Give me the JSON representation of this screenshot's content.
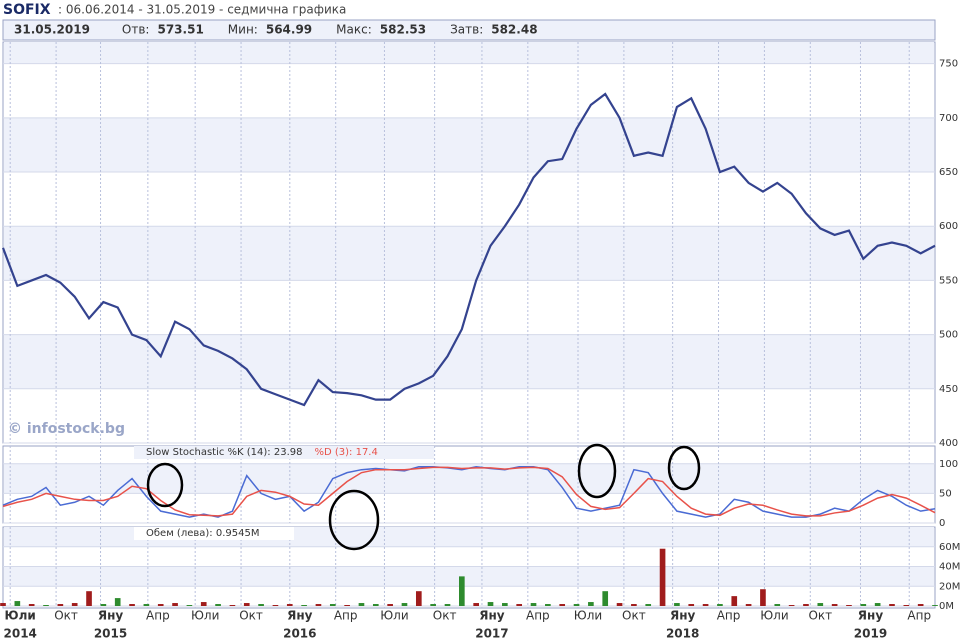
{
  "header": {
    "symbol": "SOFIX",
    "period": ": 06.06.2014 - 31.05.2019 - седмична графика",
    "quote": [
      {
        "label": "31.05.2019",
        "value": ""
      },
      {
        "label": "Отв:",
        "value": "573.51"
      },
      {
        "label": "Мин:",
        "value": "564.99"
      },
      {
        "label": "Макс:",
        "value": "582.53"
      },
      {
        "label": "Затв:",
        "value": "582.48"
      }
    ]
  },
  "chart_data": [
    {
      "type": "line",
      "annotation": "© infostock.bg",
      "color": "#34438f",
      "values": [
        580,
        545,
        550,
        555,
        548,
        535,
        515,
        530,
        525,
        500,
        495,
        480,
        512,
        505,
        490,
        485,
        478,
        468,
        450,
        445,
        440,
        435,
        458,
        447,
        446,
        444,
        440,
        440,
        450,
        455,
        462,
        480,
        505,
        550,
        582,
        600,
        620,
        645,
        660,
        662,
        690,
        712,
        722,
        700,
        665,
        668,
        665,
        710,
        718,
        690,
        650,
        655,
        640,
        632,
        640,
        630,
        612,
        598,
        592,
        596,
        570,
        582,
        585,
        582,
        575,
        582
      ],
      "ylim": [
        400,
        770
      ],
      "yticks": [
        400,
        450,
        500,
        550,
        600,
        650,
        700,
        750
      ],
      "grid": true
    },
    {
      "type": "line",
      "ylim": [
        0,
        130
      ],
      "yticks": [
        0,
        50,
        100
      ],
      "grid": true,
      "series": [
        {
          "name": "Slow Stochastic %K (14): 23.98",
          "color": "#4a6bd4",
          "values": [
            30,
            40,
            45,
            60,
            30,
            35,
            45,
            30,
            55,
            75,
            45,
            20,
            15,
            10,
            15,
            10,
            20,
            80,
            50,
            40,
            45,
            20,
            35,
            75,
            85,
            90,
            92,
            90,
            88,
            95,
            95,
            93,
            90,
            95,
            92,
            90,
            95,
            95,
            90,
            60,
            25,
            20,
            25,
            30,
            90,
            85,
            50,
            20,
            15,
            10,
            15,
            40,
            35,
            20,
            15,
            10,
            10,
            15,
            25,
            20,
            40,
            55,
            45,
            30,
            20,
            23.98
          ]
        },
        {
          "name": "%D (3): 17.4",
          "color": "#e8524a",
          "values": [
            28,
            35,
            40,
            50,
            45,
            40,
            38,
            38,
            45,
            62,
            58,
            38,
            22,
            14,
            13,
            12,
            15,
            45,
            55,
            52,
            45,
            32,
            30,
            50,
            70,
            85,
            90,
            90,
            90,
            92,
            94,
            94,
            92,
            93,
            93,
            91,
            93,
            94,
            92,
            78,
            48,
            28,
            23,
            26,
            50,
            75,
            70,
            45,
            25,
            15,
            13,
            25,
            32,
            30,
            22,
            15,
            12,
            12,
            17,
            20,
            30,
            42,
            48,
            42,
            30,
            17.4
          ]
        }
      ]
    },
    {
      "type": "bar",
      "title": "Обем (лева): 0.9545M",
      "values": [
        3,
        5,
        2,
        1,
        2,
        3,
        15,
        2,
        8,
        2,
        2,
        2,
        3,
        1,
        4,
        2,
        1,
        3,
        2,
        1,
        2,
        1,
        2,
        2,
        1,
        3,
        2,
        2,
        3,
        15,
        2,
        2,
        30,
        3,
        4,
        3,
        2,
        3,
        2,
        2,
        2,
        4,
        15,
        3,
        2,
        2,
        58,
        3,
        2,
        2,
        2,
        10,
        2,
        17,
        2,
        1,
        2,
        3,
        2,
        1,
        2,
        3,
        2,
        1,
        2,
        0.9545
      ],
      "colors": [
        "#a01c1c",
        "#2e8b2e",
        "#a01c1c",
        "#2e8b2e",
        "#a01c1c",
        "#a01c1c",
        "#a01c1c",
        "#2e8b2e",
        "#2e8b2e",
        "#a01c1c",
        "#2e8b2e",
        "#a01c1c",
        "#a01c1c",
        "#2e8b2e",
        "#a01c1c",
        "#2e8b2e",
        "#a01c1c",
        "#a01c1c",
        "#2e8b2e",
        "#a01c1c",
        "#a01c1c",
        "#2e8b2e",
        "#a01c1c",
        "#2e8b2e",
        "#a01c1c",
        "#2e8b2e",
        "#2e8b2e",
        "#a01c1c",
        "#2e8b2e",
        "#a01c1c",
        "#2e8b2e",
        "#2e8b2e",
        "#2e8b2e",
        "#a01c1c",
        "#2e8b2e",
        "#2e8b2e",
        "#a01c1c",
        "#2e8b2e",
        "#2e8b2e",
        "#a01c1c",
        "#2e8b2e",
        "#2e8b2e",
        "#2e8b2e",
        "#a01c1c",
        "#a01c1c",
        "#2e8b2e",
        "#a01c1c",
        "#2e8b2e",
        "#a01c1c",
        "#a01c1c",
        "#2e8b2e",
        "#a01c1c",
        "#a01c1c",
        "#a01c1c",
        "#2e8b2e",
        "#a01c1c",
        "#a01c1c",
        "#2e8b2e",
        "#a01c1c",
        "#a01c1c",
        "#2e8b2e",
        "#2e8b2e",
        "#a01c1c",
        "#a01c1c",
        "#a01c1c",
        "#2e8b2e"
      ],
      "ylim": [
        0,
        80
      ],
      "yticks": [
        {
          "value": 0,
          "label": "0M"
        },
        {
          "value": 20,
          "label": "20M"
        },
        {
          "value": 40,
          "label": "40M"
        },
        {
          "value": 60,
          "label": "60M"
        }
      ],
      "grid": true,
      "xlim": [
        0,
        65
      ],
      "xticks": [
        {
          "value": 1.2,
          "label": "Юли"
        },
        {
          "value": 4.4,
          "label": "Окт"
        },
        {
          "value": 7.5,
          "label": "Яну"
        },
        {
          "value": 10.8,
          "label": "Апр"
        },
        {
          "value": 14.1,
          "label": "Юли"
        },
        {
          "value": 17.3,
          "label": "Окт"
        },
        {
          "value": 20.7,
          "label": "Яну"
        },
        {
          "value": 23.9,
          "label": "Апр"
        },
        {
          "value": 27.3,
          "label": "Юли"
        },
        {
          "value": 30.8,
          "label": "Окт"
        },
        {
          "value": 34.1,
          "label": "Яну"
        },
        {
          "value": 37.3,
          "label": "Апр"
        },
        {
          "value": 40.8,
          "label": "Юли"
        },
        {
          "value": 44.0,
          "label": "Окт"
        },
        {
          "value": 47.4,
          "label": "Яну"
        },
        {
          "value": 50.6,
          "label": "Апр"
        },
        {
          "value": 53.8,
          "label": "Юли"
        },
        {
          "value": 57.0,
          "label": "Окт"
        },
        {
          "value": 60.5,
          "label": "Яну"
        },
        {
          "value": 63.9,
          "label": "Апр"
        }
      ],
      "years": [
        {
          "value": 1.2,
          "label": "2014"
        },
        {
          "value": 7.5,
          "label": "2015"
        },
        {
          "value": 20.7,
          "label": "2016"
        },
        {
          "value": 34.1,
          "label": "2017"
        },
        {
          "value": 47.4,
          "label": "2018"
        },
        {
          "value": 60.5,
          "label": "2019"
        }
      ]
    }
  ]
}
